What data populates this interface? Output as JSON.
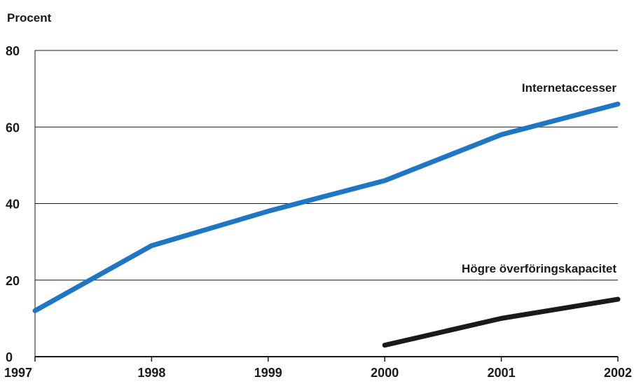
{
  "chart_data": {
    "type": "line",
    "title": "",
    "ylabel": "Procent",
    "xlabel": "",
    "x": [
      1997,
      1998,
      1999,
      2000,
      2001,
      2002
    ],
    "ylim": [
      0,
      80
    ],
    "yticks": [
      0,
      20,
      40,
      60,
      80
    ],
    "grid": true,
    "series": [
      {
        "name": "Internetaccesser",
        "color": "#1f77c4",
        "x": [
          1997,
          1998,
          1999,
          2000,
          2001,
          2002
        ],
        "values": [
          12,
          29,
          38,
          46,
          58,
          66
        ]
      },
      {
        "name": "Högre överföringskapacitet",
        "color": "#1a1a1a",
        "x": [
          2000,
          2001,
          2002
        ],
        "values": [
          3,
          10,
          15
        ]
      }
    ]
  }
}
